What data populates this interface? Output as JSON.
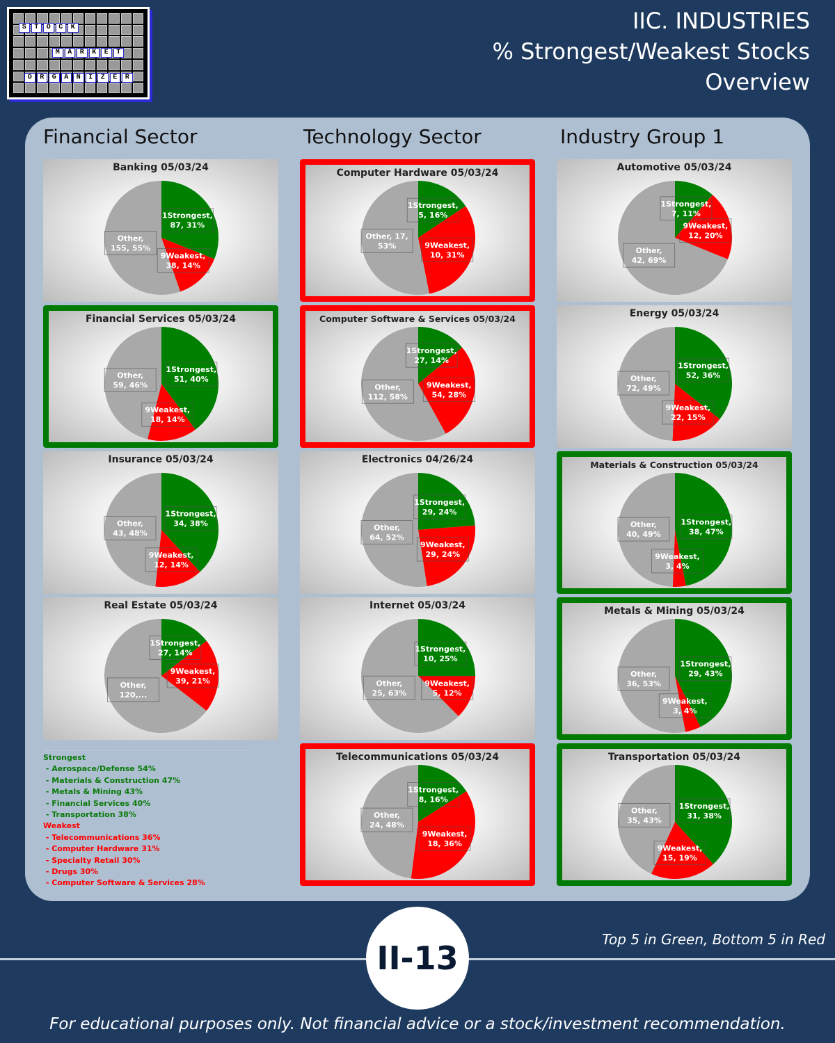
{
  "header": {
    "line1": "IIC. INDUSTRIES",
    "line2": "% Strongest/Weakest Stocks",
    "line3": "Overview"
  },
  "logo": {
    "words": [
      "STOCK",
      "MARKET",
      "ORGANIZER"
    ]
  },
  "columns": [
    {
      "heading": "Financial Sector"
    },
    {
      "heading": "Technology Sector"
    },
    {
      "heading": "Industry Group 1"
    }
  ],
  "colors": {
    "strong": "#008000",
    "weak": "#ff0000",
    "other": "#a9a9a9",
    "highlight_top": "#007a00",
    "highlight_bottom": "#ff0000"
  },
  "chart_data": [
    {
      "type": "pie",
      "title": "Banking 05/03/24",
      "highlight": "none",
      "slices": [
        {
          "name": "1Strongest",
          "value": 87,
          "percent": 31,
          "label": "1Strongest,|87, 31%"
        },
        {
          "name": "9Weakest",
          "value": 38,
          "percent": 14,
          "label": "9Weakest,|38, 14%"
        },
        {
          "name": "Other",
          "value": 155,
          "percent": 55,
          "label": "Other,|155, 55%"
        }
      ]
    },
    {
      "type": "pie",
      "title": "Financial Services 05/03/24",
      "highlight": "green",
      "slices": [
        {
          "name": "1Strongest",
          "value": 51,
          "percent": 40,
          "label": "1Strongest,|51, 40%"
        },
        {
          "name": "9Weakest",
          "value": 18,
          "percent": 14,
          "label": "9Weakest,|18, 14%"
        },
        {
          "name": "Other",
          "value": 59,
          "percent": 46,
          "label": "Other,|59, 46%"
        }
      ]
    },
    {
      "type": "pie",
      "title": "Insurance 05/03/24",
      "highlight": "none",
      "slices": [
        {
          "name": "1Strongest",
          "value": 34,
          "percent": 38,
          "label": "1Strongest,|34, 38%"
        },
        {
          "name": "9Weakest",
          "value": 12,
          "percent": 14,
          "label": "9Weakest,|12, 14%"
        },
        {
          "name": "Other",
          "value": 43,
          "percent": 48,
          "label": "Other,|43, 48%"
        }
      ]
    },
    {
      "type": "pie",
      "title": "Real Estate 05/03/24",
      "highlight": "none",
      "slices": [
        {
          "name": "1Strongest",
          "value": 27,
          "percent": 14,
          "label": "1Strongest,|27, 14%"
        },
        {
          "name": "9Weakest",
          "value": 39,
          "percent": 21,
          "label": "9Weakest,|39, 21%"
        },
        {
          "name": "Other",
          "value": 120,
          "percent": 65,
          "label": "Other,|120,..."
        }
      ]
    },
    {
      "type": "pie",
      "title": "Computer Hardware 05/03/24",
      "highlight": "red",
      "slices": [
        {
          "name": "1Strongest",
          "value": 5,
          "percent": 16,
          "label": "1Strongest,|5, 16%"
        },
        {
          "name": "9Weakest",
          "value": 10,
          "percent": 31,
          "label": "9Weakest,|10, 31%"
        },
        {
          "name": "Other",
          "value": 17,
          "percent": 53,
          "label": "Other, 17,|53%"
        }
      ]
    },
    {
      "type": "pie",
      "title": "Computer Software & Services 05/03/24",
      "highlight": "red",
      "slices": [
        {
          "name": "1Strongest",
          "value": 27,
          "percent": 14,
          "label": "1Strongest,|27, 14%"
        },
        {
          "name": "9Weakest",
          "value": 54,
          "percent": 28,
          "label": "9Weakest,|54, 28%"
        },
        {
          "name": "Other",
          "value": 112,
          "percent": 58,
          "label": "Other,|112, 58%"
        }
      ]
    },
    {
      "type": "pie",
      "title": "Electronics 04/26/24",
      "highlight": "none",
      "slices": [
        {
          "name": "1Strongest",
          "value": 29,
          "percent": 24,
          "label": "1Strongest,|29, 24%"
        },
        {
          "name": "9Weakest",
          "value": 29,
          "percent": 24,
          "label": "9Weakest,|29, 24%"
        },
        {
          "name": "Other",
          "value": 64,
          "percent": 52,
          "label": "Other,|64, 52%"
        }
      ]
    },
    {
      "type": "pie",
      "title": "Internet 05/03/24",
      "highlight": "none",
      "slices": [
        {
          "name": "1Strongest",
          "value": 10,
          "percent": 25,
          "label": "1Strongest,|10, 25%"
        },
        {
          "name": "9Weakest",
          "value": 5,
          "percent": 12,
          "label": "9Weakest,|5, 12%"
        },
        {
          "name": "Other",
          "value": 25,
          "percent": 63,
          "label": "Other,|25, 63%"
        }
      ]
    },
    {
      "type": "pie",
      "title": "Telecommunications 05/03/24",
      "highlight": "red",
      "slices": [
        {
          "name": "1Strongest",
          "value": 8,
          "percent": 16,
          "label": "1Strongest,|8, 16%"
        },
        {
          "name": "9Weakest",
          "value": 18,
          "percent": 36,
          "label": "9Weakest,|18, 36%"
        },
        {
          "name": "Other",
          "value": 24,
          "percent": 48,
          "label": "Other,|24, 48%"
        }
      ]
    },
    {
      "type": "pie",
      "title": "Automotive 05/03/24",
      "highlight": "none",
      "slices": [
        {
          "name": "1Strongest",
          "value": 7,
          "percent": 11,
          "label": "1Strongest,|7, 11%"
        },
        {
          "name": "9Weakest",
          "value": 12,
          "percent": 20,
          "label": "9Weakest,|12, 20%"
        },
        {
          "name": "Other",
          "value": 42,
          "percent": 69,
          "label": "Other,|42, 69%"
        }
      ]
    },
    {
      "type": "pie",
      "title": "Energy 05/03/24",
      "highlight": "none",
      "slices": [
        {
          "name": "1Strongest",
          "value": 52,
          "percent": 36,
          "label": "1Strongest,|52, 36%"
        },
        {
          "name": "9Weakest",
          "value": 22,
          "percent": 15,
          "label": "9Weakest,|22, 15%"
        },
        {
          "name": "Other",
          "value": 72,
          "percent": 49,
          "label": "Other,|72, 49%"
        }
      ]
    },
    {
      "type": "pie",
      "title": "Materials & Construction 05/03/24",
      "highlight": "green",
      "slices": [
        {
          "name": "1Strongest",
          "value": 38,
          "percent": 47,
          "label": "1Strongest,|38, 47%"
        },
        {
          "name": "9Weakest",
          "value": 3,
          "percent": 4,
          "label": "9Weakest,|3, 4%"
        },
        {
          "name": "Other",
          "value": 40,
          "percent": 49,
          "label": "Other,|40, 49%"
        }
      ]
    },
    {
      "type": "pie",
      "title": "Metals & Mining 05/03/24",
      "highlight": "green",
      "slices": [
        {
          "name": "1Strongest",
          "value": 29,
          "percent": 43,
          "label": "1Strongest,|29, 43%"
        },
        {
          "name": "9Weakest",
          "value": 3,
          "percent": 4,
          "label": "9Weakest,|3, 4%"
        },
        {
          "name": "Other",
          "value": 36,
          "percent": 53,
          "label": "Other,|36, 53%"
        }
      ]
    },
    {
      "type": "pie",
      "title": "Transportation 05/03/24",
      "highlight": "green",
      "slices": [
        {
          "name": "1Strongest",
          "value": 31,
          "percent": 38,
          "label": "1Strongest,|31, 38%"
        },
        {
          "name": "9Weakest",
          "value": 15,
          "percent": 19,
          "label": "9Weakest,|15, 19%"
        },
        {
          "name": "Other",
          "value": 35,
          "percent": 43,
          "label": "Other,|35, 43%"
        }
      ]
    }
  ],
  "legend": {
    "strongest_title": "Strongest",
    "strongest": [
      " - Aerospace/Defense 54%",
      " - Materials & Construction 47%",
      " - Metals & Mining 43%",
      " - Financial Services 40%",
      " - Transportation 38%"
    ],
    "weakest_title": "Weakest",
    "weakest": [
      " - Telecommunications 36%",
      " - Computer Hardware 31%",
      " - Specialty Retail 30%",
      " - Drugs 30%",
      " - Computer Software & Services 28%"
    ]
  },
  "footer": {
    "note": "Top 5 in Green, Bottom 5 in Red",
    "page": "II-13",
    "disclaimer": "For educational purposes only. Not financial advice or a stock/investment recommendation."
  }
}
